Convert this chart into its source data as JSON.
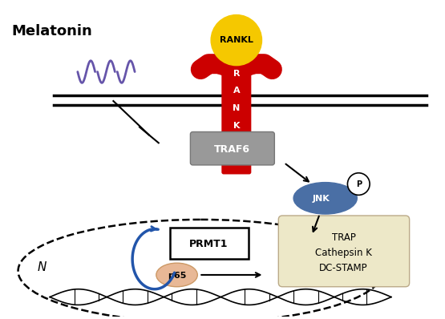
{
  "bg_color": "#ffffff",
  "melatonin_text": "Melatonin",
  "rankl_text": "RANKL",
  "traf6_text": "TRAF6",
  "jnk_text": "JNK",
  "p_text": "P",
  "prmt1_text": "PRMT1",
  "p65_text": "p65",
  "n_text": "N",
  "genes_text": "TRAP\nCathepsin K\nDC-STAMP",
  "rankl_color": "#F5C800",
  "rank_color": "#CC0000",
  "traf6_color": "#999999",
  "jnk_color": "#4A6FA5",
  "p65_color": "#E8B896",
  "genes_bg": "#EDE8C8",
  "wave_color": "#6655AA",
  "arrow_color": "#111111",
  "blue_arrow_color": "#2255AA"
}
